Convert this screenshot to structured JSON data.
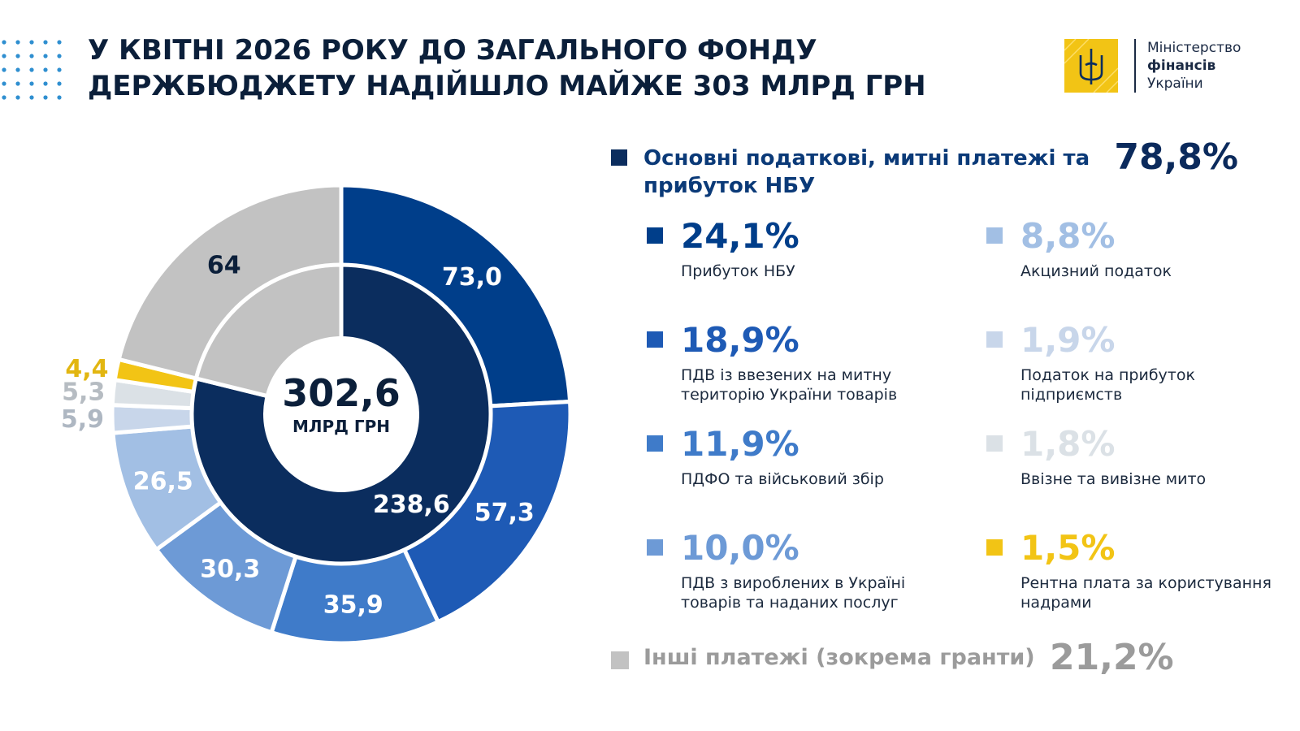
{
  "title": {
    "line1": "У КВІТНІ 2026 РОКУ ДО ЗАГАЛЬНОГО ФОНДУ",
    "line2": "ДЕРЖБЮДЖЕТУ НАДІЙШЛО МАЙЖЕ 303 МЛРД ГРН"
  },
  "logo": {
    "line1": "Міністерство",
    "line2": "фінансів",
    "line3": "України",
    "icon": "trident-emblem-icon"
  },
  "colors": {
    "navy": "#0b2d5e",
    "blue_dark": "#003e8a",
    "blue": "#1e5ab5",
    "blue_mid": "#3f7bc9",
    "blue_light": "#6d9ad6",
    "blue_pale": "#a2bfe4",
    "blue_paler": "#c8d6ea",
    "gray_pale": "#dbe1e6",
    "yellow": "#f2c415",
    "gray": "#c2c2c2"
  },
  "legend": {
    "main_label": "Основні податкові, митні платежі та прибуток НБУ",
    "main_pct": "78,8%",
    "others_label": "Інші платежі (зокрема гранти)",
    "others_pct": "21,2%",
    "items": [
      {
        "pct": "24,1%",
        "label": "Прибуток НБУ",
        "color": "#003e8a"
      },
      {
        "pct": "18,9%",
        "label": "ПДВ із ввезених на митну територію України товарів",
        "color": "#1e5ab5"
      },
      {
        "pct": "11,9%",
        "label": "ПДФО та військовий збір",
        "color": "#3f7bc9"
      },
      {
        "pct": "10,0%",
        "label": "ПДВ з вироблених в Україні товарів та наданих послуг",
        "color": "#6d9ad6"
      },
      {
        "pct": "8,8%",
        "label": "Акцизний податок",
        "color": "#a2bfe4"
      },
      {
        "pct": "1,9%",
        "label": "Податок на прибуток підприємств",
        "color": "#c8d6ea"
      },
      {
        "pct": "1,8%",
        "label": "Ввізне та вивізне мито",
        "color": "#dbe1e6"
      },
      {
        "pct": "1,5%",
        "label": "Рентна плата за користування надрами",
        "color": "#f2c415"
      }
    ]
  },
  "chart_data": {
    "type": "pie",
    "total_value": "302,6",
    "total_unit": "МЛРД ГРН",
    "inner": {
      "values": [
        238.6,
        64
      ],
      "labels": [
        "238,6",
        ""
      ],
      "colors": [
        "#0b2d5e",
        "#c2c2c2"
      ]
    },
    "outer": {
      "values": [
        73.0,
        57.3,
        35.9,
        30.3,
        26.5,
        5.9,
        5.3,
        4.4,
        64
      ],
      "labels": [
        "73,0",
        "57,3",
        "35,9",
        "30,3",
        "26,5",
        "5,9",
        "5,3",
        "4,4",
        "64"
      ],
      "colors": [
        "#003e8a",
        "#1e5ab5",
        "#3f7bc9",
        "#6d9ad6",
        "#a2bfe4",
        "#c8d6ea",
        "#dbe1e6",
        "#f2c415",
        "#c2c2c2"
      ],
      "label_colors": [
        "#ffffff",
        "#ffffff",
        "#ffffff",
        "#ffffff",
        "#ffffff",
        "#aeb7c2",
        "#b6bcc2",
        "#e2b611",
        "#0b1f3a"
      ]
    }
  }
}
